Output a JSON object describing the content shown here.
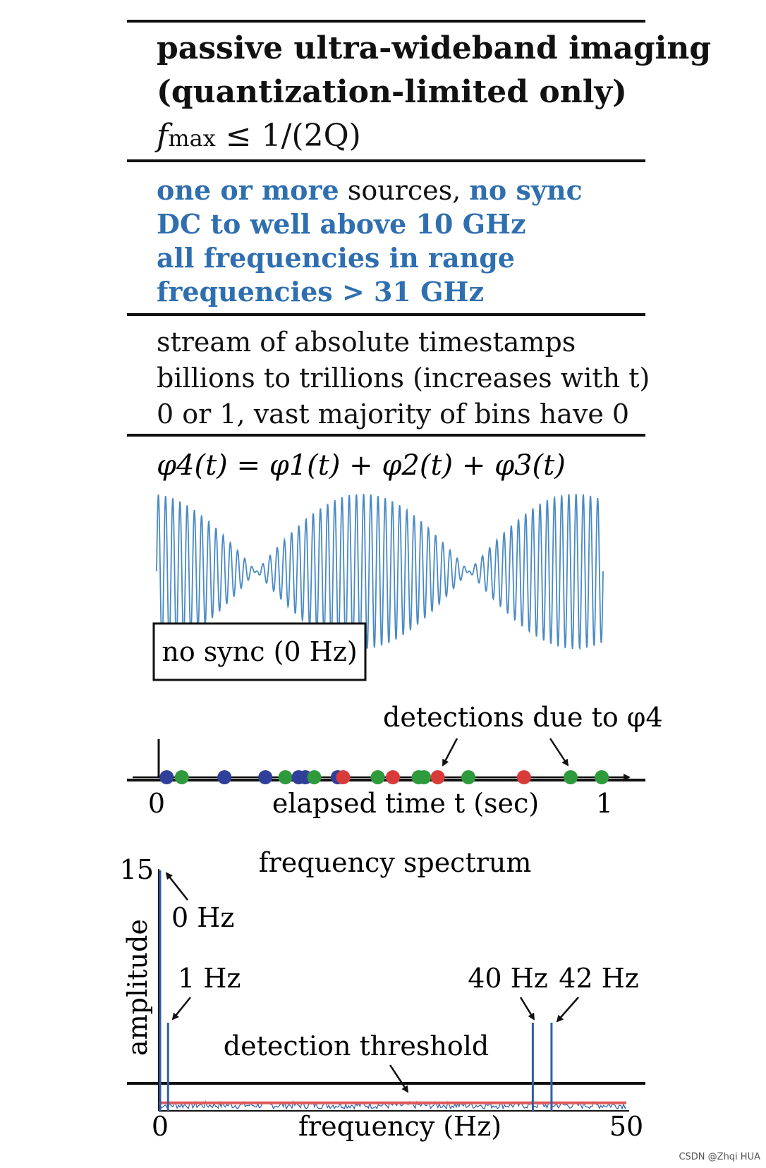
{
  "header": {
    "title_line1": "passive ultra-wideband imaging",
    "title_line2": "(quantization-limited only)",
    "formula_f": "f",
    "formula_sub": "max",
    "formula_rest": " ≤ 1/(2Q)"
  },
  "sources": {
    "line1_a": "one or more",
    "line1_b": " sources, ",
    "line1_c": "no sync",
    "line2": "DC to well above 10 GHz",
    "line3": "all frequencies in range",
    "line4": "frequencies > 31 GHz"
  },
  "data": {
    "line1": "stream of absolute timestamps",
    "line2": "billions to trillions (increases with t)",
    "line3": "0 or 1, vast majority of bins have 0"
  },
  "signal": {
    "equation": "φ4(t) = φ1(t) + φ2(t) + φ3(t)",
    "box_label": "no sync (0 Hz)",
    "detections_label": "detections due to φ4",
    "axis_start": "0",
    "axis_end": "1",
    "axis_label": "elapsed time t (sec)",
    "wave_color": "#4a8ac4",
    "detections": [
      {
        "t": 0.018,
        "color": "#2f3f9a"
      },
      {
        "t": 0.052,
        "color": "#2f9a3c"
      },
      {
        "t": 0.148,
        "color": "#2f3f9a"
      },
      {
        "t": 0.24,
        "color": "#2f3f9a"
      },
      {
        "t": 0.285,
        "color": "#2f9a3c"
      },
      {
        "t": 0.315,
        "color": "#2f3f9a"
      },
      {
        "t": 0.33,
        "color": "#2f3f9a"
      },
      {
        "t": 0.35,
        "color": "#2f9a3c"
      },
      {
        "t": 0.403,
        "color": "#2f3f9a"
      },
      {
        "t": 0.415,
        "color": "#d93a3a"
      },
      {
        "t": 0.493,
        "color": "#2f9a3c"
      },
      {
        "t": 0.527,
        "color": "#d93a3a"
      },
      {
        "t": 0.585,
        "color": "#2f9a3c"
      },
      {
        "t": 0.597,
        "color": "#2f9a3c"
      },
      {
        "t": 0.628,
        "color": "#d93a3a"
      },
      {
        "t": 0.697,
        "color": "#2f9a3c"
      },
      {
        "t": 0.822,
        "color": "#d93a3a"
      },
      {
        "t": 0.927,
        "color": "#2f9a3c"
      },
      {
        "t": 0.997,
        "color": "#2f9a3c"
      }
    ]
  },
  "chart_data": {
    "type": "bar",
    "title": "frequency spectrum",
    "xlabel": "frequency (Hz)",
    "ylabel": "amplitude",
    "xlim": [
      0,
      50
    ],
    "ylim": [
      0,
      15
    ],
    "x_tick_labels": [
      "0",
      "50"
    ],
    "y_tick_labels": [
      "15"
    ],
    "peaks": [
      {
        "x": 0,
        "y": 15,
        "label": "0 Hz"
      },
      {
        "x": 1,
        "y": 5.5,
        "label": "1 Hz"
      },
      {
        "x": 40,
        "y": 5.5,
        "label": "40 Hz"
      },
      {
        "x": 42,
        "y": 5.5,
        "label": "42 Hz"
      }
    ],
    "threshold": 0.5,
    "threshold_label": "detection threshold",
    "line_color": "#2f5fa8",
    "threshold_color": "#e05a5a"
  },
  "watermark": "CSDN @Zhqi HUA"
}
